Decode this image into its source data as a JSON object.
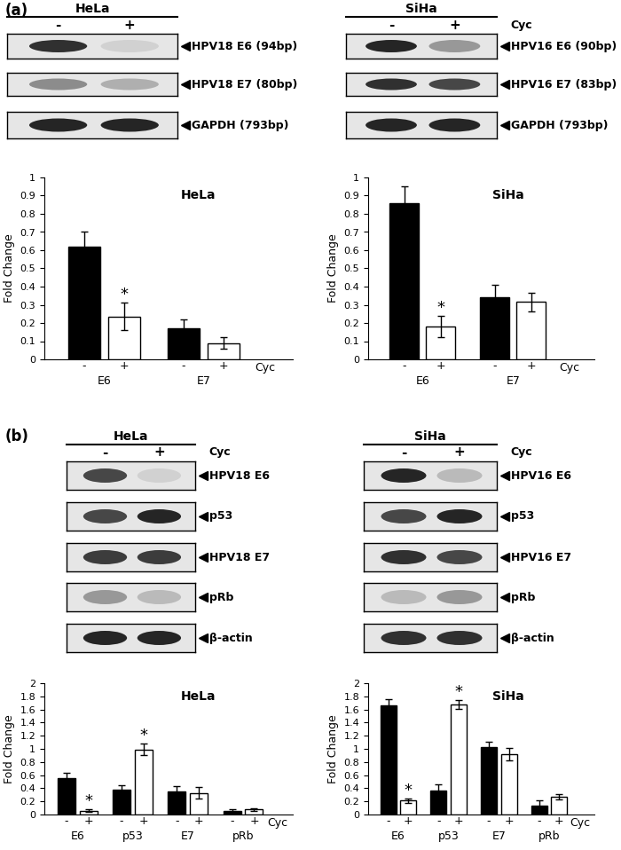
{
  "panels": [
    {
      "label": "(a)",
      "blots": [
        {
          "cell_line": "HeLa",
          "lanes": [
            "-",
            "+"
          ],
          "rows": [
            {
              "label": "HPV18 E6 (94bp)",
              "bands": [
                0.9,
                0.2
              ]
            },
            {
              "label": "HPV18 E7 (80bp)",
              "bands": [
                0.5,
                0.35
              ]
            },
            {
              "label": "GAPDH (793bp)",
              "bands": [
                0.95,
                0.95
              ]
            }
          ]
        },
        {
          "cell_line": "SiHa",
          "lanes": [
            "-",
            "+"
          ],
          "condition_label": "Cyc",
          "rows": [
            {
              "label": "HPV16 E6 (90bp)",
              "bands": [
                0.95,
                0.45
              ]
            },
            {
              "label": "HPV16 E7 (83bp)",
              "bands": [
                0.9,
                0.8
              ]
            },
            {
              "label": "GAPDH (793bp)",
              "bands": [
                0.95,
                0.95
              ]
            }
          ]
        }
      ]
    },
    {
      "label": "(b)",
      "blots": [
        {
          "cell_line": "HeLa",
          "lanes": [
            "-",
            "+"
          ],
          "condition_label": "Cyc",
          "rows": [
            {
              "label": "HPV18 E6",
              "bands": [
                0.8,
                0.2
              ]
            },
            {
              "label": "p53",
              "bands": [
                0.8,
                0.95
              ]
            },
            {
              "label": "HPV18 E7",
              "bands": [
                0.85,
                0.85
              ]
            },
            {
              "label": "pRb",
              "bands": [
                0.45,
                0.3
              ]
            },
            {
              "label": "β-actin",
              "bands": [
                0.95,
                0.95
              ]
            }
          ]
        },
        {
          "cell_line": "SiHa",
          "lanes": [
            "-",
            "+"
          ],
          "condition_label": "Cyc",
          "rows": [
            {
              "label": "HPV16 E6",
              "bands": [
                0.95,
                0.3
              ]
            },
            {
              "label": "p53",
              "bands": [
                0.8,
                0.95
              ]
            },
            {
              "label": "HPV16 E7",
              "bands": [
                0.9,
                0.8
              ]
            },
            {
              "label": "pRb",
              "bands": [
                0.3,
                0.45
              ]
            },
            {
              "label": "β-actin",
              "bands": [
                0.9,
                0.9
              ]
            }
          ]
        }
      ]
    }
  ],
  "chart_data": [
    {
      "type": "bar",
      "title": "HeLa",
      "y_label": "Fold Change",
      "x_label": "Cyc",
      "categories": [
        "E6",
        "E7"
      ],
      "series": [
        {
          "name": "-",
          "color": "#000000",
          "values": [
            0.62,
            0.17
          ],
          "errors": [
            0.08,
            0.05
          ]
        },
        {
          "name": "+",
          "color": "#ffffff",
          "values": [
            0.235,
            0.09
          ],
          "errors": [
            0.075,
            0.03
          ]
        }
      ],
      "ylim": [
        0,
        1
      ],
      "yticks": [
        0,
        0.1,
        0.2,
        0.3,
        0.4,
        0.5,
        0.6,
        0.7,
        0.8,
        0.9,
        1
      ],
      "annotations": [
        {
          "text": "*",
          "category": "E6",
          "series": "+"
        }
      ]
    },
    {
      "type": "bar",
      "title": "SiHa",
      "y_label": "Fold Change",
      "x_label": "Cyc",
      "categories": [
        "E6",
        "E7"
      ],
      "series": [
        {
          "name": "-",
          "color": "#000000",
          "values": [
            0.86,
            0.34
          ],
          "errors": [
            0.09,
            0.07
          ]
        },
        {
          "name": "+",
          "color": "#ffffff",
          "values": [
            0.18,
            0.315
          ],
          "errors": [
            0.06,
            0.05
          ]
        }
      ],
      "ylim": [
        0,
        1
      ],
      "yticks": [
        0,
        0.1,
        0.2,
        0.3,
        0.4,
        0.5,
        0.6,
        0.7,
        0.8,
        0.9,
        1
      ],
      "annotations": [
        {
          "text": "*",
          "category": "E6",
          "series": "+"
        }
      ]
    },
    {
      "type": "bar",
      "title": "HeLa",
      "y_label": "Fold Change",
      "x_label": "Cyc",
      "categories": [
        "E6",
        "p53",
        "E7",
        "pRb"
      ],
      "series": [
        {
          "name": "-",
          "color": "#000000",
          "values": [
            0.56,
            0.38,
            0.35,
            0.06
          ],
          "errors": [
            0.07,
            0.07,
            0.08,
            0.02
          ]
        },
        {
          "name": "+",
          "color": "#ffffff",
          "values": [
            0.06,
            0.99,
            0.33,
            0.08
          ],
          "errors": [
            0.02,
            0.09,
            0.09,
            0.02
          ]
        }
      ],
      "ylim": [
        0,
        2
      ],
      "yticks": [
        0,
        0.2,
        0.4,
        0.6,
        0.8,
        1,
        1.2,
        1.4,
        1.6,
        1.8,
        2
      ],
      "annotations": [
        {
          "text": "*",
          "category": "E6",
          "series": "+"
        },
        {
          "text": "*",
          "category": "p53",
          "series": "+"
        }
      ]
    },
    {
      "type": "bar",
      "title": "SiHa",
      "y_label": "Fold Change",
      "x_label": "Cyc",
      "categories": [
        "E6",
        "p53",
        "E7",
        "pRb"
      ],
      "series": [
        {
          "name": "-",
          "color": "#000000",
          "values": [
            1.66,
            0.37,
            1.03,
            0.14
          ],
          "errors": [
            0.1,
            0.09,
            0.08,
            0.07
          ]
        },
        {
          "name": "+",
          "color": "#ffffff",
          "values": [
            0.21,
            1.68,
            0.92,
            0.27
          ],
          "errors": [
            0.03,
            0.07,
            0.1,
            0.04
          ]
        }
      ],
      "ylim": [
        0,
        2
      ],
      "yticks": [
        0,
        0.2,
        0.4,
        0.6,
        0.8,
        1,
        1.2,
        1.4,
        1.6,
        1.8,
        2
      ],
      "annotations": [
        {
          "text": "*",
          "category": "E6",
          "series": "+"
        },
        {
          "text": "*",
          "category": "p53",
          "series": "+"
        }
      ]
    }
  ]
}
